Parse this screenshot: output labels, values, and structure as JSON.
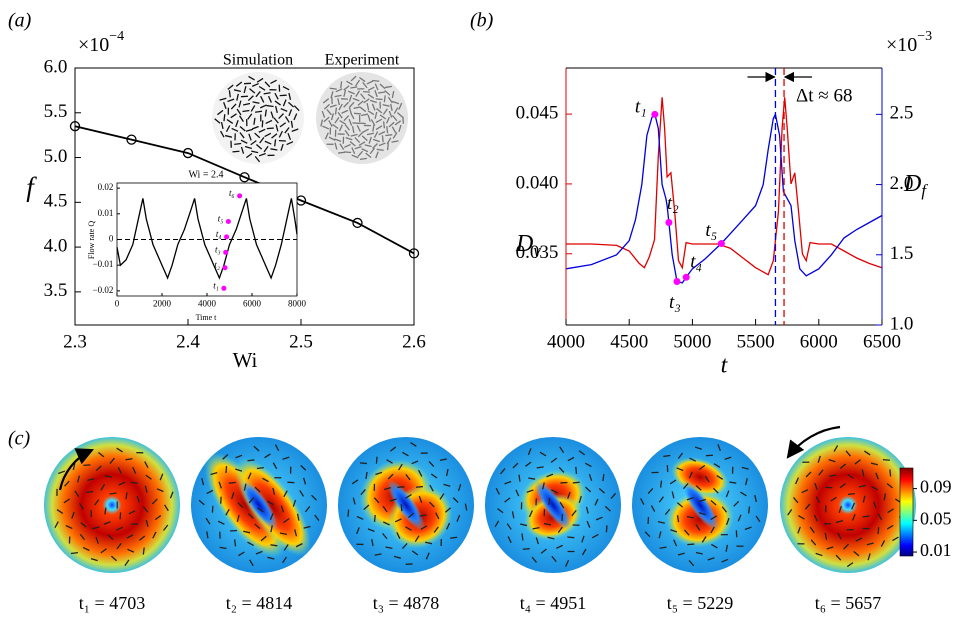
{
  "chart_data": [
    {
      "type": "line",
      "panel_label": "(a)",
      "x": [
        2.3,
        2.35,
        2.4,
        2.45,
        2.5,
        2.55,
        2.6
      ],
      "values": [
        5.35,
        5.2,
        5.05,
        4.78,
        4.52,
        4.27,
        3.93
      ],
      "color": "#000000",
      "marker": "circle",
      "xlim": [
        2.3,
        2.6
      ],
      "xticks": [
        2.3,
        2.4,
        2.5,
        2.6
      ],
      "ylim": [
        3.13,
        6.0
      ],
      "yticks": [
        3.5,
        {
          "value": 4,
          "label": "4.0"
        },
        4.5,
        {
          "value": 5,
          "label": "5.0"
        },
        5.5,
        {
          "value": 6,
          "label": "6.0"
        }
      ],
      "xlabel": "Wi",
      "ylabel": "f",
      "multiplier": {
        "base": "×10",
        "exponent": "−4"
      },
      "image_labels": [
        "Simulation",
        "Experiment"
      ]
    },
    {
      "type": "line",
      "title": "Wi = 2.4",
      "x": [
        0,
        150,
        400,
        700,
        1000,
        1150,
        1300,
        1600,
        2000,
        2250,
        2450,
        2700,
        3000,
        3300,
        3450,
        3600,
        3900,
        4300,
        4550,
        4750,
        5000,
        5300,
        5600,
        5750,
        5900,
        6200,
        6600,
        6850,
        7050,
        7300,
        7600,
        7750,
        7900,
        8000
      ],
      "values": [
        -0.003,
        -0.01,
        -0.008,
        -0.002,
        0.01,
        0.016,
        0.008,
        -0.002,
        -0.01,
        -0.015,
        -0.01,
        -0.002,
        0.004,
        0.012,
        0.016,
        0.008,
        -0.002,
        -0.01,
        -0.015,
        -0.01,
        -0.002,
        0.004,
        0.012,
        0.016,
        0.008,
        -0.002,
        -0.01,
        -0.015,
        -0.01,
        -0.002,
        0.01,
        0.016,
        0.008,
        0.002
      ],
      "color": "#000000",
      "xlim": [
        0,
        8000
      ],
      "xticks": [
        0,
        2000,
        4000,
        6000,
        8000
      ],
      "ylim": [
        -0.022,
        0.022
      ],
      "yticks": [
        0.02,
        0.01,
        0,
        {
          "value": -0.01,
          "label": "−0.01"
        },
        {
          "value": -0.02,
          "label": "−0.02"
        }
      ],
      "hline": 0,
      "xlabel": "Time t",
      "ylabel": "Flow rate Q",
      "markers": {
        "x": [
          4750,
          4800,
          4830,
          4870,
          4950,
          5450
        ],
        "values": [
          -0.019,
          -0.011,
          -0.005,
          0.001,
          0.007,
          0.017
        ],
        "labels": [
          "t₁",
          "t₂",
          "t₃",
          "t₄",
          "t₅",
          "t₆"
        ],
        "color": "#ff00ff"
      }
    },
    {
      "type": "dual_line",
      "panel_label": "(b)",
      "series": [
        {
          "color": "#e00000",
          "axis": "y",
          "x": [
            4000,
            4200,
            4400,
            4500,
            4580,
            4620,
            4660,
            4700,
            4730,
            4760,
            4780,
            4800,
            4830,
            4860,
            4890,
            4920,
            4950,
            5000,
            5200,
            5300,
            5400,
            5500,
            5600,
            5640,
            5680,
            5710,
            5730,
            5750,
            5780,
            5810,
            5840,
            5870,
            5900,
            5930,
            6000,
            6100,
            6200,
            6300,
            6400,
            6500
          ],
          "values": [
            0.0357,
            0.0357,
            0.0356,
            0.0352,
            0.0343,
            0.034,
            0.0348,
            0.036,
            0.042,
            0.0462,
            0.044,
            0.0405,
            0.0408,
            0.038,
            0.0345,
            0.034,
            0.0358,
            0.0357,
            0.0357,
            0.0354,
            0.0347,
            0.034,
            0.0335,
            0.0345,
            0.038,
            0.044,
            0.0462,
            0.044,
            0.04,
            0.0408,
            0.038,
            0.035,
            0.0345,
            0.0358,
            0.0357,
            0.0357,
            0.0352,
            0.0347,
            0.0343,
            0.034
          ]
        },
        {
          "color": "#0000e0",
          "axis": "y2",
          "x": [
            4000,
            4200,
            4400,
            4500,
            4550,
            4600,
            4640,
            4680,
            4703,
            4730,
            4760,
            4790,
            4800,
            4814,
            4840,
            4878,
            4920,
            4951,
            5000,
            5100,
            5229,
            5300,
            5400,
            5500,
            5560,
            5600,
            5640,
            5657,
            5690,
            5720,
            5750,
            5780,
            5810,
            5850,
            5900,
            6000,
            6100,
            6200,
            6300,
            6400,
            6500
          ],
          "values": [
            1.4,
            1.43,
            1.5,
            1.6,
            1.75,
            2.0,
            2.35,
            2.48,
            2.5,
            2.4,
            2.0,
            1.9,
            1.85,
            1.73,
            1.5,
            1.31,
            1.3,
            1.34,
            1.4,
            1.47,
            1.58,
            1.65,
            1.75,
            1.85,
            2.0,
            2.25,
            2.47,
            2.5,
            2.35,
            1.95,
            1.9,
            1.85,
            1.6,
            1.4,
            1.35,
            1.4,
            1.5,
            1.62,
            1.68,
            1.73,
            1.78
          ]
        }
      ],
      "xlim": [
        4000,
        6500
      ],
      "xticks": [
        4000,
        4500,
        5000,
        5500,
        6000,
        6500
      ],
      "ylim": [
        0.0299,
        0.0483
      ],
      "yticks": [
        0.035,
        {
          "value": 0.04,
          "label": "0.040"
        },
        0.045
      ],
      "y2lim": [
        1.0,
        2.83
      ],
      "y2ticks": [
        {
          "value": 1,
          "label": "1.0"
        },
        1.5,
        {
          "value": 2,
          "label": "2.0"
        },
        2.5
      ],
      "xlabel": "t",
      "ylabel": {
        "base": "D",
        "sub": "v"
      },
      "y2label": {
        "base": "D",
        "sub": "f"
      },
      "multiplier": {
        "base": "×10",
        "exponent": "−3"
      },
      "markers": {
        "x": [
          4703,
          4814,
          4878,
          4951,
          5229
        ],
        "values": [
          2.5,
          1.73,
          1.31,
          1.34,
          1.58
        ],
        "labels": [
          "t₁",
          "t₂",
          "t₃",
          "t₄",
          "t₅"
        ],
        "color": "#ff00ff"
      },
      "vlines": [
        {
          "x": 5657,
          "color": "#0000e0"
        },
        {
          "x": 5725,
          "color": "#e00000"
        }
      ],
      "annotation": "Δt ≈ 68"
    },
    {
      "type": "snapshots",
      "panel_label": "(c)",
      "labels": [
        "t₁ = 4703",
        "t₂ = 4814",
        "t₃ = 4878",
        "t₄ = 4951",
        "t₅ = 5229",
        "t₆ = 5657"
      ],
      "colorbar": {
        "lim": [
          0.005,
          0.116
        ],
        "ticks": [
          0.09,
          0.05,
          0.01
        ]
      }
    }
  ]
}
